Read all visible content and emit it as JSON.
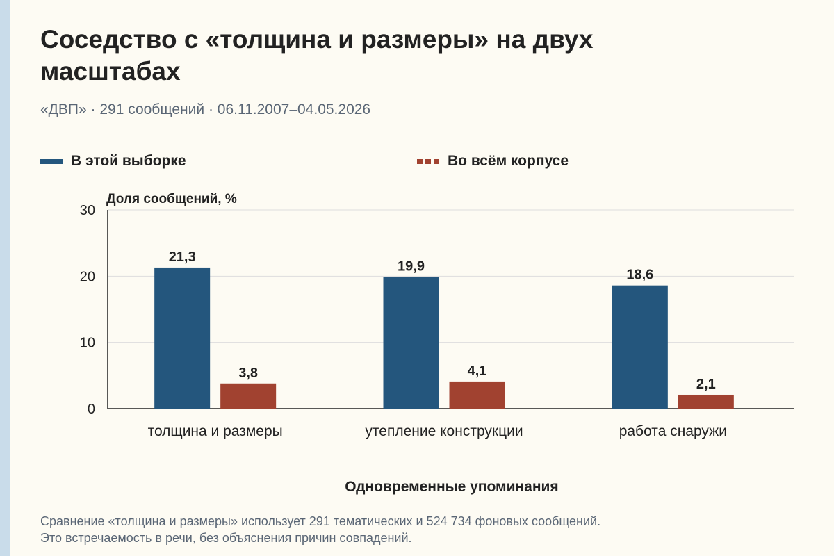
{
  "title": "Соседство с «толщина и размеры» на двух масштабах",
  "subtitle": "«ДВП» · 291 сообщений · 06.11.2007–04.05.2026",
  "footnote": [
    "Сравнение «толщина и размеры» использует 291 тематических и 524 734 фоновых сообщений.",
    "Это встречаемость в речи, без объяснения причин совпадений."
  ],
  "colors": {
    "sample": "#24567d",
    "corpus": "#a14230",
    "grid": "#dddddd",
    "background": "#fdfbf3"
  },
  "chart_data": {
    "type": "bar",
    "categories": [
      "толщина и размеры",
      "утепление конструкции",
      "работа снаружи"
    ],
    "series": [
      {
        "name": "В этой выборке",
        "values": [
          21.3,
          19.9,
          18.6
        ],
        "labels": [
          "21,3",
          "19,9",
          "18,6"
        ]
      },
      {
        "name": "Во всём корпусе",
        "values": [
          3.8,
          4.1,
          2.1
        ],
        "labels": [
          "3,8",
          "4,1",
          "2,1"
        ]
      }
    ],
    "ylabel": "Доля сообщений, %",
    "xlabel": "Одновременные упоминания",
    "ylim": [
      0,
      30
    ],
    "yticks": [
      0,
      10,
      20,
      30
    ],
    "grid": true,
    "legend": "top"
  }
}
